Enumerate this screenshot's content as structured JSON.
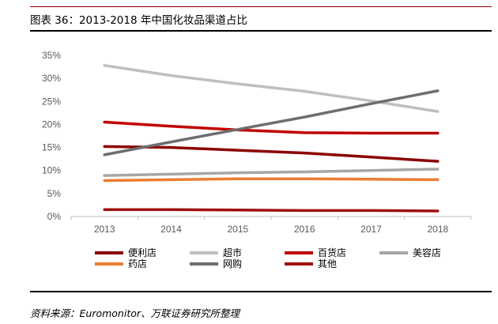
{
  "figure": {
    "title": "图表 36：2013-2018 年中国化妆品渠道占比",
    "source": "资料来源：Euromonitor、万联证券研究所整理"
  },
  "chart_data": {
    "type": "line",
    "categories": [
      "2013",
      "2014",
      "2015",
      "2016",
      "2017",
      "2018"
    ],
    "y_ticks": [
      "0%",
      "5%",
      "10%",
      "15%",
      "20%",
      "25%",
      "30%",
      "35%"
    ],
    "ylim": [
      0,
      35
    ],
    "y_unit": "%",
    "legend_position": "bottom",
    "grid": false,
    "series": [
      {
        "name": "便利店",
        "color": "#8B0000",
        "values": [
          15.2,
          15.0,
          14.4,
          13.8,
          12.9,
          12.0
        ]
      },
      {
        "name": "超市",
        "color": "#BFBFBF",
        "values": [
          32.8,
          30.6,
          28.8,
          27.2,
          25.1,
          22.8
        ]
      },
      {
        "name": "百货店",
        "color": "#C00000",
        "values": [
          20.5,
          19.6,
          18.8,
          18.2,
          18.1,
          18.1
        ]
      },
      {
        "name": "美容店",
        "color": "#A6A6A6",
        "values": [
          8.9,
          9.2,
          9.5,
          9.7,
          10.0,
          10.3
        ]
      },
      {
        "name": "药店",
        "color": "#ED7D31",
        "values": [
          7.8,
          8.0,
          8.2,
          8.2,
          8.1,
          8.0
        ]
      },
      {
        "name": "网购",
        "color": "#6E6E6E",
        "values": [
          13.4,
          16.2,
          18.9,
          21.6,
          24.5,
          27.3
        ]
      },
      {
        "name": "其他",
        "color": "#9E1010",
        "values": [
          1.5,
          1.5,
          1.4,
          1.3,
          1.3,
          1.2
        ]
      }
    ]
  }
}
